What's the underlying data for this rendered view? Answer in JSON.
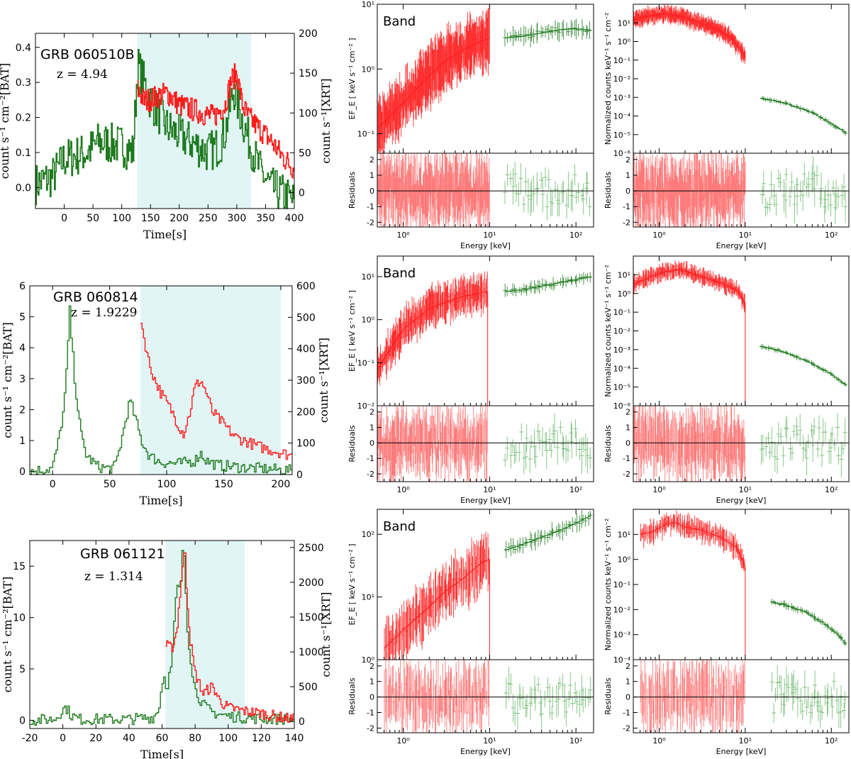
{
  "colors": {
    "bat": "#1e7a1e",
    "xrt": "#ff1a1a",
    "highlight": "#e1f5f5",
    "resid_red": "#ff7b7b",
    "resid_green": "#7dc07d"
  },
  "chart_data": [
    {
      "type": "line",
      "name": "GRB 060510B",
      "redshift": "z = 4.94",
      "title": "GRB 060510B",
      "xlabel": "Time[s]",
      "ylabel_left": "count s⁻¹ cm⁻²[BAT]",
      "ylabel_right": "count s⁻¹[XRT]",
      "xlim": [
        -50,
        400
      ],
      "ylim_left": [
        -0.06,
        0.44
      ],
      "ylim_right": [
        -20,
        200
      ],
      "xticks": [
        0,
        50,
        100,
        150,
        200,
        250,
        300,
        350,
        400
      ],
      "yticks_left": [
        0.0,
        0.1,
        0.2,
        0.3,
        0.4
      ],
      "yticks_right": [
        0,
        50,
        100,
        150,
        200
      ],
      "highlight_interval": [
        127,
        325
      ],
      "series": [
        {
          "name": "BAT",
          "axis": "left",
          "x": [
            -50,
            -20,
            0,
            40,
            60,
            100,
            120,
            128,
            150,
            180,
            200,
            230,
            250,
            270,
            280,
            295,
            305,
            320,
            340,
            360,
            380,
            400
          ],
          "y": [
            0.01,
            0.03,
            0.08,
            0.1,
            0.13,
            0.12,
            0.1,
            0.35,
            0.25,
            0.17,
            0.15,
            0.12,
            0.1,
            0.12,
            0.16,
            0.28,
            0.22,
            0.14,
            0.05,
            0.0,
            -0.02,
            -0.04
          ]
        },
        {
          "name": "XRT",
          "axis": "right",
          "x": [
            127,
            140,
            160,
            180,
            200,
            220,
            240,
            260,
            280,
            290,
            300,
            310,
            320,
            340,
            360,
            380,
            400
          ],
          "y": [
            130,
            115,
            120,
            125,
            110,
            105,
            100,
            95,
            110,
            140,
            150,
            110,
            95,
            80,
            65,
            45,
            30
          ]
        }
      ]
    },
    {
      "type": "line",
      "name": "GRB 060814",
      "redshift": "z = 1.9229",
      "title": "GRB 060814",
      "xlabel": "Time[s]",
      "ylabel_left": "count s⁻¹ cm⁻²[BAT]",
      "ylabel_right": "count s⁻¹[XRT]",
      "xlim": [
        -20,
        210
      ],
      "ylim_left": [
        -0.1,
        6
      ],
      "ylim_right": [
        0,
        600
      ],
      "xticks": [
        0,
        50,
        100,
        150,
        200
      ],
      "yticks_left": [
        0,
        1,
        2,
        3,
        4,
        5,
        6
      ],
      "yticks_right": [
        0,
        100,
        200,
        300,
        400,
        500,
        600
      ],
      "highlight_interval": [
        77,
        200
      ],
      "series": [
        {
          "name": "BAT",
          "axis": "left",
          "x": [
            -20,
            0,
            5,
            10,
            13,
            15,
            17,
            20,
            25,
            30,
            40,
            50,
            55,
            60,
            65,
            68,
            72,
            78,
            85,
            95,
            110,
            125,
            130,
            135,
            145,
            160,
            180,
            200,
            210
          ],
          "y": [
            0.0,
            0.1,
            0.9,
            2.0,
            3.5,
            5.3,
            4.2,
            2.8,
            1.2,
            0.5,
            0.15,
            0.1,
            0.15,
            0.9,
            1.8,
            2.3,
            1.8,
            1.0,
            0.5,
            0.3,
            0.25,
            0.35,
            0.6,
            0.35,
            0.2,
            0.15,
            0.1,
            0.05,
            0.03
          ]
        },
        {
          "name": "XRT",
          "axis": "right",
          "x": [
            77,
            80,
            85,
            90,
            95,
            100,
            105,
            110,
            115,
            120,
            125,
            130,
            135,
            140,
            150,
            160,
            170,
            180,
            190,
            200,
            210
          ],
          "y": [
            510,
            440,
            350,
            300,
            260,
            230,
            200,
            160,
            130,
            190,
            280,
            300,
            260,
            200,
            160,
            120,
            105,
            90,
            80,
            70,
            60
          ]
        }
      ]
    },
    {
      "type": "line",
      "name": "GRB 061121",
      "redshift": "z = 1.314",
      "title": "GRB 061121",
      "xlabel": "Time[s]",
      "ylabel_left": "count s⁻¹ cm⁻²[BAT]",
      "ylabel_right": "count s⁻¹[XRT]",
      "xlim": [
        -20,
        140
      ],
      "ylim_left": [
        -0.8,
        17.5
      ],
      "ylim_right": [
        -100,
        2600
      ],
      "xticks": [
        -20,
        0,
        20,
        40,
        60,
        80,
        100,
        120,
        140
      ],
      "yticks_left": [
        0,
        5,
        10,
        15
      ],
      "yticks_right": [
        0,
        500,
        1000,
        1500,
        2000,
        2500
      ],
      "highlight_interval": [
        62,
        110
      ],
      "series": [
        {
          "name": "BAT",
          "axis": "left",
          "x": [
            -20,
            -5,
            0,
            2,
            5,
            10,
            40,
            55,
            58,
            61,
            63,
            66,
            69,
            71,
            73,
            74,
            75,
            77,
            80,
            85,
            90,
            100,
            110,
            120,
            140
          ],
          "y": [
            0.0,
            0.1,
            1.0,
            1.3,
            0.5,
            0.1,
            0.1,
            0.3,
            1.0,
            4.5,
            3.2,
            5.5,
            13.0,
            12.5,
            17.3,
            15.0,
            10.0,
            6.5,
            3.0,
            1.5,
            0.8,
            0.4,
            0.25,
            0.15,
            0.1
          ]
        },
        {
          "name": "XRT",
          "axis": "right",
          "x": [
            62,
            66,
            69,
            72,
            74,
            75,
            77,
            80,
            85,
            90,
            92,
            95,
            100,
            110,
            120,
            130,
            140
          ],
          "y": [
            1100,
            1050,
            1300,
            2100,
            2500,
            1900,
            1200,
            700,
            400,
            500,
            450,
            300,
            200,
            150,
            120,
            70,
            30
          ]
        }
      ]
    },
    {
      "type": "scatter",
      "name": "GRB 060510B spectrum",
      "title": "Band",
      "xlabel": "Energy [keV]",
      "ylabel": "EF_E [ keV s⁻¹ cm⁻² ]",
      "ylabel_resid": "Residuals",
      "xscale": "log",
      "yscale": "log",
      "xlim": [
        0.5,
        160
      ],
      "ylim": [
        0.05,
        10
      ],
      "resid_ylim": [
        -2.3,
        2.4
      ],
      "xticks": [
        "10⁰",
        "10¹",
        "10²"
      ],
      "yticks": [
        "10⁻¹",
        "10⁰",
        "10¹"
      ],
      "resid_yticks": [
        -2,
        -1,
        0,
        1,
        2
      ],
      "series": [
        {
          "name": "XRT",
          "x": [
            0.5,
            1,
            2,
            3,
            5,
            7,
            10
          ],
          "y": [
            0.12,
            0.3,
            0.8,
            1.3,
            2.0,
            2.5,
            3.0
          ]
        },
        {
          "name": "BAT",
          "x": [
            15,
            25,
            40,
            60,
            100,
            150
          ],
          "y": [
            3.0,
            3.2,
            3.6,
            4.0,
            4.2,
            4.0
          ]
        }
      ]
    },
    {
      "type": "scatter",
      "name": "GRB 060510B counts",
      "xlabel": "Energy [keV]",
      "ylabel": "Normalized counts keV⁻¹ s⁻¹ cm⁻²",
      "ylabel_resid": "Residuals",
      "xscale": "log",
      "yscale": "log",
      "xlim": [
        0.5,
        160
      ],
      "ylim": [
        1e-06,
        100
      ],
      "resid_ylim": [
        -2.3,
        2.4
      ],
      "xticks": [
        "10⁰",
        "10¹",
        "10²"
      ],
      "yticks": [
        "10⁻⁶",
        "10⁻⁵",
        "10⁻⁴",
        "10⁻³",
        "10⁻²",
        "10⁻¹",
        "10⁰",
        "10¹"
      ],
      "resid_yticks": [
        -2,
        -1,
        0,
        1,
        2
      ],
      "series": [
        {
          "name": "XRT",
          "x": [
            0.5,
            0.8,
            1.2,
            2,
            3,
            5,
            7,
            10
          ],
          "y": [
            15,
            25,
            30,
            20,
            10,
            4,
            1.5,
            0.15
          ]
        },
        {
          "name": "BAT",
          "x": [
            15,
            25,
            40,
            60,
            100,
            150
          ],
          "y": [
            0.0009,
            0.0006,
            0.0003,
            0.00015,
            4e-05,
            1.2e-05
          ]
        }
      ]
    },
    {
      "type": "scatter",
      "name": "GRB 060814 spectrum",
      "title": "Band",
      "xlabel": "Energy [keV]",
      "ylabel": "EF_E [ keV s⁻¹ cm⁻² ]",
      "ylabel_resid": "Residuals",
      "xscale": "log",
      "yscale": "log",
      "xlim": [
        0.5,
        160
      ],
      "ylim": [
        0.01,
        30
      ],
      "resid_ylim": [
        -2.5,
        2.4
      ],
      "xticks": [
        "10⁰",
        "10¹",
        "10²"
      ],
      "yticks": [
        "10⁻²",
        "10⁻¹",
        "10⁰",
        "10¹"
      ],
      "resid_yticks": [
        -2,
        -1,
        0,
        1,
        2
      ],
      "series": [
        {
          "name": "XRT",
          "x": [
            0.5,
            0.7,
            1,
            2,
            3,
            5,
            8,
            9.5
          ],
          "y": [
            0.07,
            0.2,
            0.6,
            1.8,
            2.5,
            3.5,
            4.2,
            4.5
          ]
        },
        {
          "name": "BAT",
          "x": [
            15,
            25,
            40,
            60,
            100,
            150
          ],
          "y": [
            4.5,
            5.0,
            6.0,
            7.0,
            8.5,
            10.0
          ]
        }
      ]
    },
    {
      "type": "scatter",
      "name": "GRB 060814 counts",
      "xlabel": "Energy [keV]",
      "ylabel": "Normalized counts keV⁻¹ s⁻¹ cm⁻²",
      "ylabel_resid": "Residuals",
      "xscale": "log",
      "yscale": "log",
      "xlim": [
        0.5,
        160
      ],
      "ylim": [
        1e-06,
        100
      ],
      "resid_ylim": [
        -2.5,
        2.4
      ],
      "xticks": [
        "10⁰",
        "10¹",
        "10²"
      ],
      "yticks": [
        "10⁻⁶",
        "10⁻⁵",
        "10⁻⁴",
        "10⁻³",
        "10⁻²",
        "10⁻¹",
        "10⁰",
        "10¹"
      ],
      "resid_yticks": [
        -2,
        -1,
        0,
        1,
        2
      ],
      "series": [
        {
          "name": "XRT",
          "x": [
            0.5,
            0.8,
            1.2,
            1.8,
            3,
            5,
            8,
            10
          ],
          "y": [
            3,
            8,
            15,
            20,
            8,
            4,
            1.5,
            0.3
          ]
        },
        {
          "name": "BAT",
          "x": [
            15,
            25,
            40,
            60,
            100,
            150
          ],
          "y": [
            0.0015,
            0.0009,
            0.0004,
            0.00018,
            5e-05,
            1.2e-05
          ]
        }
      ]
    },
    {
      "type": "scatter",
      "name": "GRB 061121 spectrum",
      "title": "Band",
      "xlabel": "Energy [keV]",
      "ylabel": "EF_E [ keV s⁻¹ cm⁻² ]",
      "ylabel_resid": "Residuals",
      "xscale": "log",
      "yscale": "log",
      "xlim": [
        0.5,
        160
      ],
      "ylim": [
        1,
        250
      ],
      "resid_ylim": [
        -2.3,
        2.4
      ],
      "xticks": [
        "10⁰",
        "10¹",
        "10²"
      ],
      "yticks": [
        "10⁰",
        "10¹",
        "10²"
      ],
      "resid_yticks": [
        -2,
        -1,
        0,
        1,
        2
      ],
      "series": [
        {
          "name": "XRT",
          "x": [
            0.6,
            1,
            2,
            3,
            5,
            8,
            10
          ],
          "y": [
            1.5,
            3,
            7,
            12,
            20,
            35,
            40
          ]
        },
        {
          "name": "BAT",
          "x": [
            15,
            25,
            40,
            60,
            100,
            150
          ],
          "y": [
            55,
            70,
            90,
            110,
            150,
            200
          ]
        }
      ]
    },
    {
      "type": "scatter",
      "name": "GRB 061121 counts",
      "xlabel": "Energy [keV]",
      "ylabel": "Normalized counts keV⁻¹ s⁻¹ cm⁻²",
      "ylabel_resid": "Residuals",
      "xscale": "log",
      "yscale": "log",
      "xlim": [
        0.5,
        160
      ],
      "ylim": [
        0.0001,
        100
      ],
      "resid_ylim": [
        -2.3,
        2.4
      ],
      "xticks": [
        "10⁰",
        "10¹",
        "10²"
      ],
      "yticks": [
        "10⁻⁴",
        "10⁻³",
        "10⁻²",
        "10⁻¹",
        "10⁰",
        "10¹"
      ],
      "resid_yticks": [
        -2,
        -1,
        0,
        1,
        2
      ],
      "series": [
        {
          "name": "XRT",
          "x": [
            0.6,
            0.8,
            1.2,
            1.5,
            2,
            3,
            5,
            8,
            10
          ],
          "y": [
            10,
            12,
            25,
            30,
            20,
            15,
            8,
            3,
            0.5
          ]
        },
        {
          "name": "BAT",
          "x": [
            20,
            30,
            50,
            80,
            120,
            150
          ],
          "y": [
            0.02,
            0.015,
            0.008,
            0.003,
            0.001,
            0.0004
          ]
        }
      ]
    }
  ]
}
